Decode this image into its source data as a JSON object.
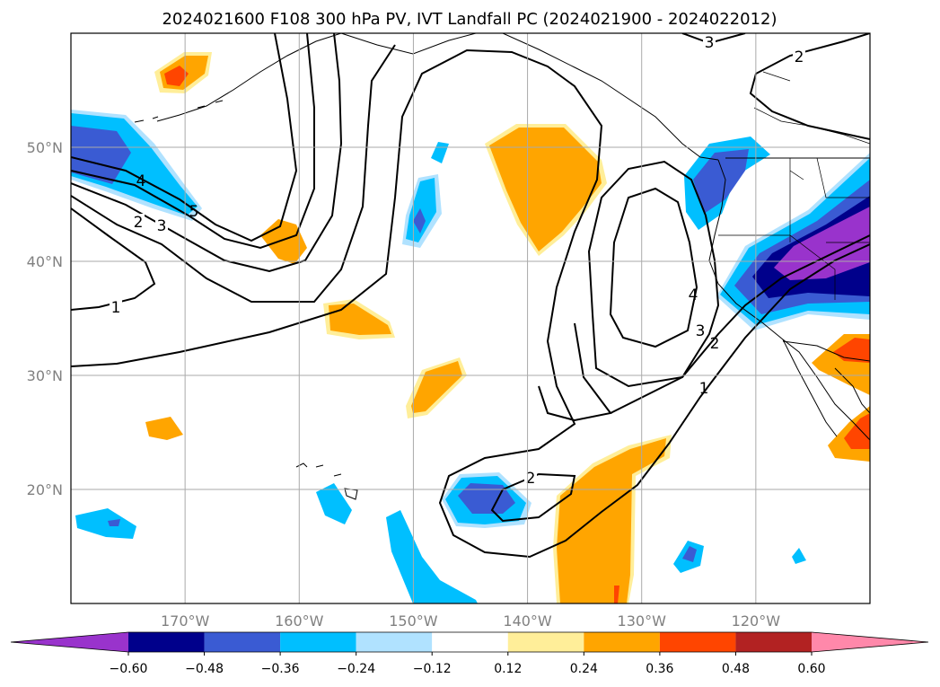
{
  "chart_data": {
    "type": "heatmap",
    "title": "2024021600 F108 300 hPa PV, IVT Landfall PC (2024021900 - 2024022012)",
    "map": {
      "lon_range": [
        -180,
        -110
      ],
      "lat_range": [
        10,
        60
      ],
      "lon_ticks": [
        -170,
        -160,
        -150,
        -140,
        -130,
        -120
      ],
      "lat_ticks": [
        20,
        30,
        40,
        50
      ],
      "lon_tick_labels": [
        "170°W",
        "160°W",
        "150°W",
        "140°W",
        "130°W",
        "120°W"
      ],
      "lat_tick_labels": [
        "20°N",
        "30°N",
        "40°N",
        "50°N"
      ],
      "grid": true
    },
    "colorbar": {
      "orientation": "horizontal",
      "extend": "both",
      "levels": [
        -0.6,
        -0.48,
        -0.36,
        -0.24,
        -0.12,
        0.12,
        0.24,
        0.36,
        0.48,
        0.6
      ],
      "tick_labels": [
        "−0.60",
        "−0.48",
        "−0.36",
        "−0.24",
        "−0.12",
        "0.12",
        "0.24",
        "0.36",
        "0.48",
        "0.60"
      ],
      "colors": [
        "#9933cc",
        "#00008b",
        "#3a5bd3",
        "#00bfff",
        "#b0e2ff",
        "#ffffff",
        "#ffee99",
        "#ffa500",
        "#ff4500",
        "#b22222",
        "#ff88aa"
      ]
    },
    "pv_contours": {
      "levels": [
        1,
        2,
        3,
        4,
        5
      ],
      "labels_shown": [
        "1",
        "2",
        "3",
        "4",
        "5"
      ],
      "color": "#000000"
    },
    "shaded_features": [
      {
        "name": "west-pacific-negative",
        "value_min": -0.48,
        "lon": -176,
        "lat": 46
      },
      {
        "name": "offshore-positive-north",
        "value_min": 0.24,
        "lon": -139,
        "lat": 44
      },
      {
        "name": "pnw-negative",
        "value_min": -0.36,
        "lon": -124,
        "lat": 47
      },
      {
        "name": "california-negative",
        "value_min": -0.6,
        "lon": -114,
        "lat": 40
      },
      {
        "name": "subtropical-negative",
        "value_min": -0.36,
        "lon": -143,
        "lat": 19
      },
      {
        "name": "subtropical-positive",
        "value_min": 0.24,
        "lon": -133,
        "lat": 17
      },
      {
        "name": "mexico-positive",
        "value_min": 0.36,
        "lon": -112,
        "lat": 27
      }
    ]
  }
}
